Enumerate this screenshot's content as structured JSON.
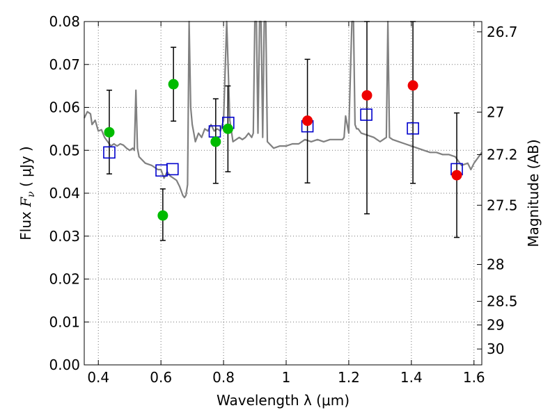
{
  "chart_data": {
    "type": "scatter",
    "xlabel": "Wavelength  λ (μm)",
    "ylabel": "Flux  F_ν  ( μJy )",
    "ylabel_parts": {
      "prefix": "Flux  ",
      "symbol": "F",
      "subscript": "ν",
      "suffix": "  ( μJy )"
    },
    "y2label": "Magnitude (AB)",
    "xlim": [
      0.355,
      1.625
    ],
    "ylim": [
      0.0,
      0.08
    ],
    "grid": true,
    "x_ticks": [
      0.4,
      0.6,
      0.8,
      1.0,
      1.2,
      1.4,
      1.6
    ],
    "x_tick_labels": [
      "0.4",
      "0.6",
      "0.8",
      "1",
      "1.2",
      "1.4",
      "1.6"
    ],
    "y_ticks": [
      0.0,
      0.01,
      0.02,
      0.03,
      0.04,
      0.05,
      0.06,
      0.07,
      0.08
    ],
    "y_tick_labels": [
      "0.00",
      "0.01",
      "0.02",
      "0.03",
      "0.04",
      "0.05",
      "0.06",
      "0.07",
      "0.08"
    ],
    "y2_ticks": [
      {
        "label": "26.7",
        "flux": 0.0776
      },
      {
        "label": "27",
        "flux": 0.0589
      },
      {
        "label": "27.2",
        "flux": 0.049
      },
      {
        "label": "27.5",
        "flux": 0.0372
      },
      {
        "label": "28",
        "flux": 0.0234
      },
      {
        "label": "28.5",
        "flux": 0.0148
      },
      {
        "label": "29",
        "flux": 0.0093
      },
      {
        "label": "30",
        "flux": 0.0037
      }
    ],
    "colors": {
      "model": "#808080",
      "observed_green": "#00bb00",
      "observed_red": "#ee0000",
      "model_box": "#0000cc",
      "errorbar": "#000000"
    },
    "model_spectrum": {
      "x": [
        0.355,
        0.365,
        0.375,
        0.38,
        0.39,
        0.4,
        0.41,
        0.42,
        0.43,
        0.44,
        0.45,
        0.46,
        0.47,
        0.48,
        0.49,
        0.5,
        0.51,
        0.515,
        0.52,
        0.525,
        0.53,
        0.55,
        0.57,
        0.59,
        0.6,
        0.61,
        0.62,
        0.63,
        0.64,
        0.65,
        0.66,
        0.67,
        0.675,
        0.68,
        0.685,
        0.69,
        0.695,
        0.7,
        0.705,
        0.71,
        0.72,
        0.73,
        0.74,
        0.75,
        0.76,
        0.77,
        0.78,
        0.79,
        0.8,
        0.81,
        0.82,
        0.83,
        0.84,
        0.85,
        0.86,
        0.87,
        0.88,
        0.89,
        0.895,
        0.9,
        0.905,
        0.91,
        0.915,
        0.92,
        0.925,
        0.93,
        0.935,
        0.94,
        0.96,
        0.98,
        1.0,
        1.02,
        1.04,
        1.06,
        1.08,
        1.1,
        1.12,
        1.14,
        1.16,
        1.18,
        1.185,
        1.19,
        1.2,
        1.21,
        1.215,
        1.22,
        1.225,
        1.23,
        1.24,
        1.26,
        1.28,
        1.3,
        1.32,
        1.325,
        1.33,
        1.34,
        1.36,
        1.38,
        1.4,
        1.42,
        1.44,
        1.46,
        1.48,
        1.5,
        1.52,
        1.54,
        1.56,
        1.58,
        1.59,
        1.6,
        1.61,
        1.625
      ],
      "y": [
        0.0575,
        0.059,
        0.0585,
        0.056,
        0.057,
        0.0545,
        0.0548,
        0.053,
        0.052,
        0.051,
        0.0515,
        0.051,
        0.0515,
        0.0512,
        0.0505,
        0.05,
        0.0505,
        0.05,
        0.064,
        0.0505,
        0.0485,
        0.047,
        0.0465,
        0.0455,
        0.0455,
        0.0435,
        0.045,
        0.044,
        0.0435,
        0.043,
        0.0415,
        0.0395,
        0.039,
        0.0395,
        0.042,
        0.08,
        0.06,
        0.056,
        0.054,
        0.052,
        0.054,
        0.053,
        0.055,
        0.0545,
        0.056,
        0.0545,
        0.055,
        0.0545,
        0.057,
        0.08,
        0.057,
        0.052,
        0.0525,
        0.053,
        0.0525,
        0.053,
        0.054,
        0.053,
        0.054,
        0.08,
        0.08,
        0.054,
        0.08,
        0.08,
        0.053,
        0.08,
        0.08,
        0.052,
        0.0505,
        0.051,
        0.051,
        0.0515,
        0.0515,
        0.0525,
        0.052,
        0.0525,
        0.052,
        0.0525,
        0.0525,
        0.0525,
        0.053,
        0.058,
        0.054,
        0.08,
        0.08,
        0.056,
        0.055,
        0.055,
        0.054,
        0.0535,
        0.053,
        0.052,
        0.053,
        0.08,
        0.053,
        0.0525,
        0.052,
        0.0515,
        0.051,
        0.0505,
        0.05,
        0.0495,
        0.0495,
        0.049,
        0.049,
        0.0485,
        0.0465,
        0.047,
        0.0455,
        0.047,
        0.048,
        0.0495
      ]
    },
    "observed": [
      {
        "x": 0.435,
        "y": 0.0542,
        "yerr_low": 0.0445,
        "yerr_high": 0.064,
        "color": "green"
      },
      {
        "x": 0.606,
        "y": 0.0348,
        "yerr_low": 0.029,
        "yerr_high": 0.041,
        "color": "green"
      },
      {
        "x": 0.64,
        "y": 0.0654,
        "yerr_low": 0.0568,
        "yerr_high": 0.074,
        "color": "green"
      },
      {
        "x": 0.775,
        "y": 0.052,
        "yerr_low": 0.0423,
        "yerr_high": 0.062,
        "color": "green"
      },
      {
        "x": 0.814,
        "y": 0.055,
        "yerr_low": 0.045,
        "yerr_high": 0.065,
        "color": "green"
      },
      {
        "x": 1.068,
        "y": 0.0569,
        "yerr_low": 0.0424,
        "yerr_high": 0.0712,
        "color": "red"
      },
      {
        "x": 1.258,
        "y": 0.0628,
        "yerr_low": 0.0352,
        "yerr_high": 0.08,
        "color": "red"
      },
      {
        "x": 1.405,
        "y": 0.0651,
        "yerr_low": 0.0423,
        "yerr_high": 0.08,
        "color": "red"
      },
      {
        "x": 1.545,
        "y": 0.0442,
        "yerr_low": 0.0297,
        "yerr_high": 0.0587,
        "color": "red"
      }
    ],
    "model_photometry": [
      {
        "x": 0.435,
        "y": 0.0495
      },
      {
        "x": 0.602,
        "y": 0.0453
      },
      {
        "x": 0.637,
        "y": 0.0456
      },
      {
        "x": 0.772,
        "y": 0.0544
      },
      {
        "x": 0.815,
        "y": 0.0564
      },
      {
        "x": 1.068,
        "y": 0.0556
      },
      {
        "x": 1.256,
        "y": 0.0583
      },
      {
        "x": 1.405,
        "y": 0.0551
      },
      {
        "x": 1.545,
        "y": 0.0456
      }
    ]
  }
}
